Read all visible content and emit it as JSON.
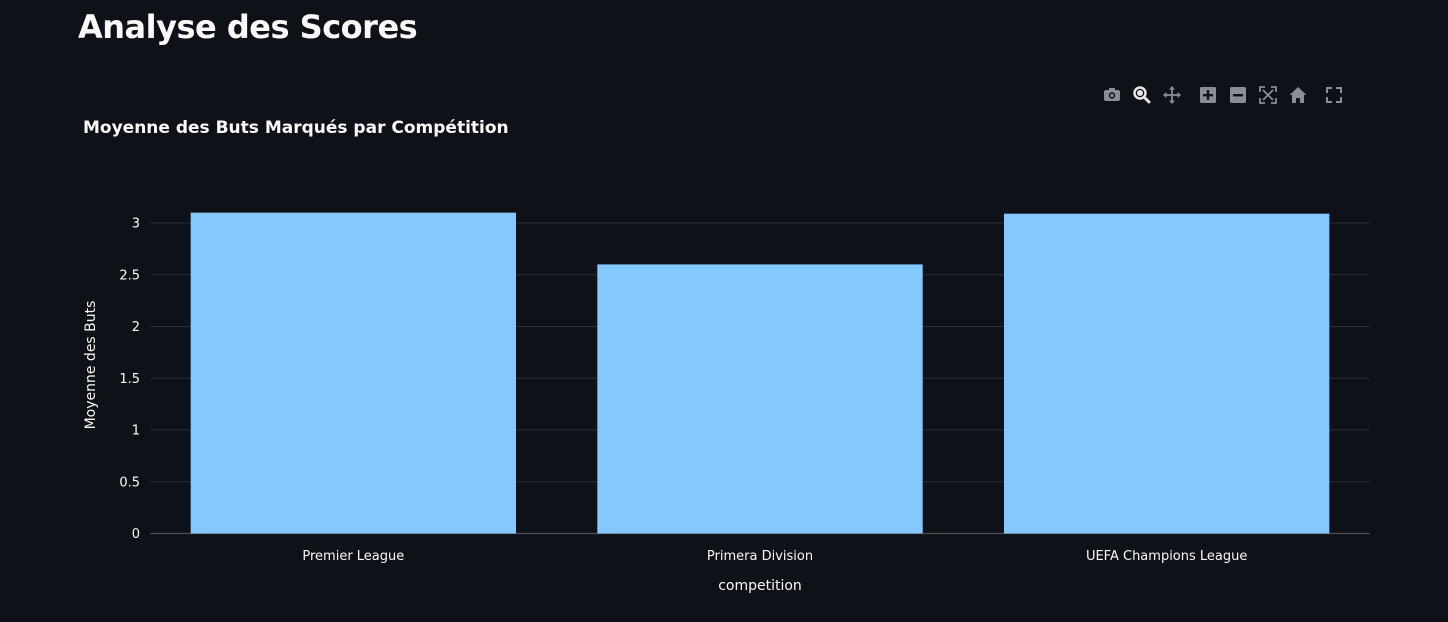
{
  "page": {
    "title": "Analyse des Scores"
  },
  "modebar": {
    "icons": [
      "camera-icon",
      "zoom-icon",
      "pan-icon",
      "zoom-in-icon",
      "zoom-out-icon",
      "autoscale-icon",
      "home-icon",
      "fullscreen-icon"
    ]
  },
  "chart_data": {
    "type": "bar",
    "title": "Moyenne des Buts Marqués par Compétition",
    "xlabel": "competition",
    "ylabel": "Moyenne des Buts",
    "categories": [
      "Premier League",
      "Primera Division",
      "UEFA Champions League"
    ],
    "values": [
      3.1,
      2.6,
      3.09
    ],
    "ylim": [
      0,
      3.3
    ],
    "yticks": [
      0,
      0.5,
      1,
      1.5,
      2,
      2.5,
      3
    ],
    "ytick_labels": [
      "0",
      "0.5",
      "1",
      "1.5",
      "2",
      "2.5",
      "3"
    ],
    "bar_color": "#83c9ff",
    "background": "#0e1117",
    "grid": true,
    "legend": "none"
  }
}
